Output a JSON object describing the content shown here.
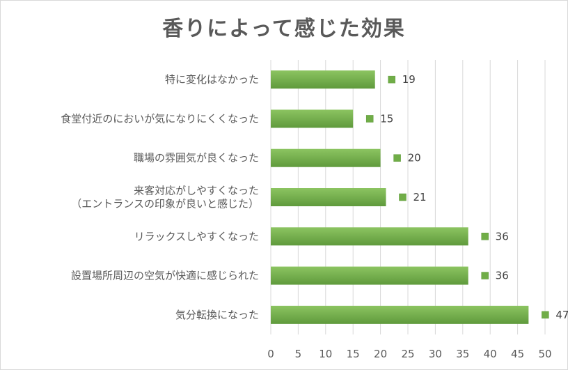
{
  "chart_data": {
    "type": "bar",
    "orientation": "horizontal",
    "title": "香りによって感じた効果",
    "categories": [
      [
        "特に変化はなかった"
      ],
      [
        "食堂付近のにおいが気になりにくくなった"
      ],
      [
        "職場の雰囲気が良くなった"
      ],
      [
        "来客対応がしやすくなった",
        "（エントランスの印象が良いと感じた）"
      ],
      [
        "リラックスしやすくなった"
      ],
      [
        "設置場所周辺の空気が快適に感じられた"
      ],
      [
        "気分転換になった"
      ]
    ],
    "values": [
      19,
      15,
      20,
      21,
      36,
      36,
      47
    ],
    "xlim": [
      0,
      50
    ],
    "xticks": [
      0,
      5,
      10,
      15,
      20,
      25,
      30,
      35,
      40,
      45,
      50
    ],
    "grid": true,
    "legend": "none",
    "colors": {
      "bar": "#70ad47",
      "bar_light": "#8cc461",
      "bar_dark": "#5f9a3c",
      "grid": "#d9d9d9",
      "text": "#595959"
    }
  }
}
